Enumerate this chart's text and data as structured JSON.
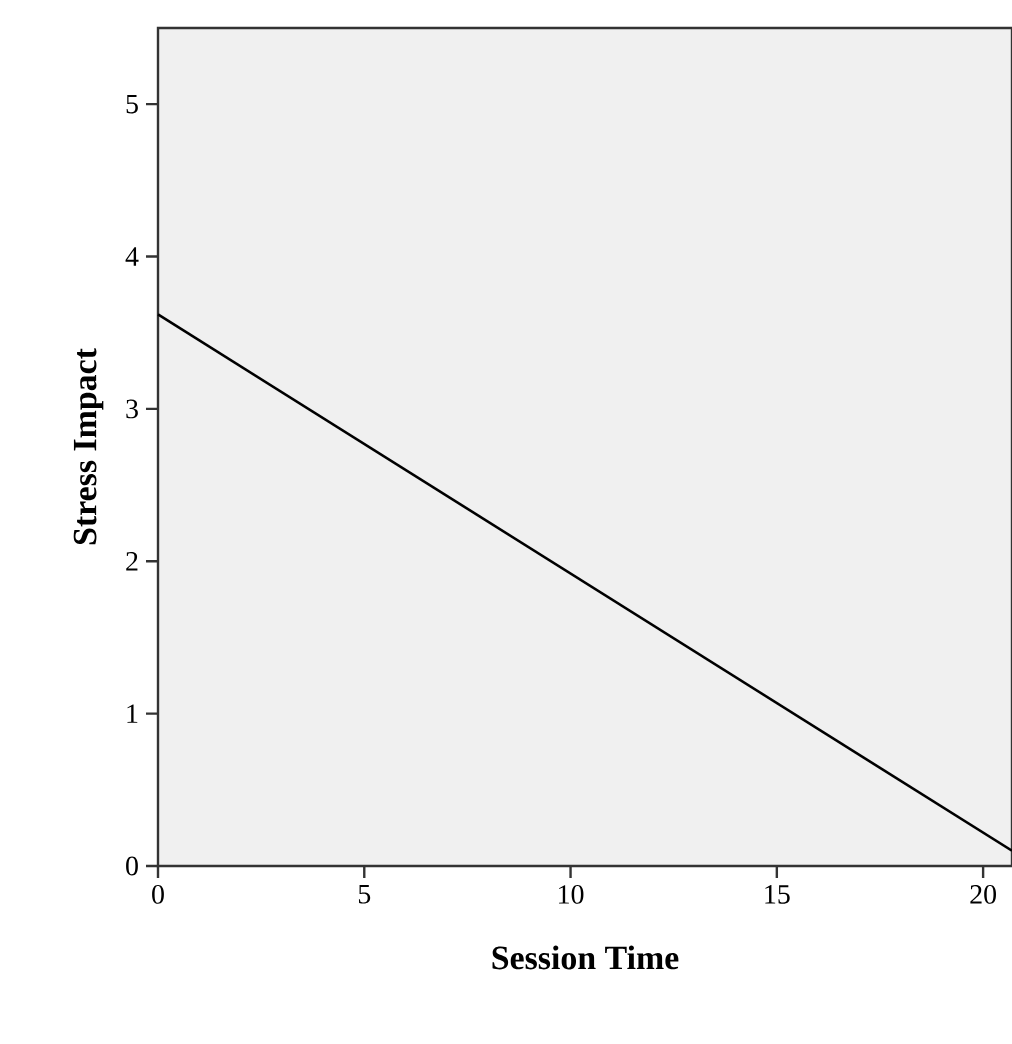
{
  "chart_data": {
    "type": "line",
    "xlabel": "Session Time",
    "ylabel": "Stress Impact",
    "x": [
      0,
      20.7
    ],
    "series": [
      {
        "color": "#000000",
        "values": [
          3.62,
          0.1
        ]
      }
    ],
    "xlim": [
      0,
      20.7
    ],
    "ylim": [
      0,
      5.5
    ],
    "xticks": [
      0,
      5,
      10,
      15,
      20
    ],
    "yticks": [
      0,
      1,
      2,
      3,
      4,
      5
    ],
    "grid": false,
    "marker": "none",
    "line_style": "solid"
  }
}
